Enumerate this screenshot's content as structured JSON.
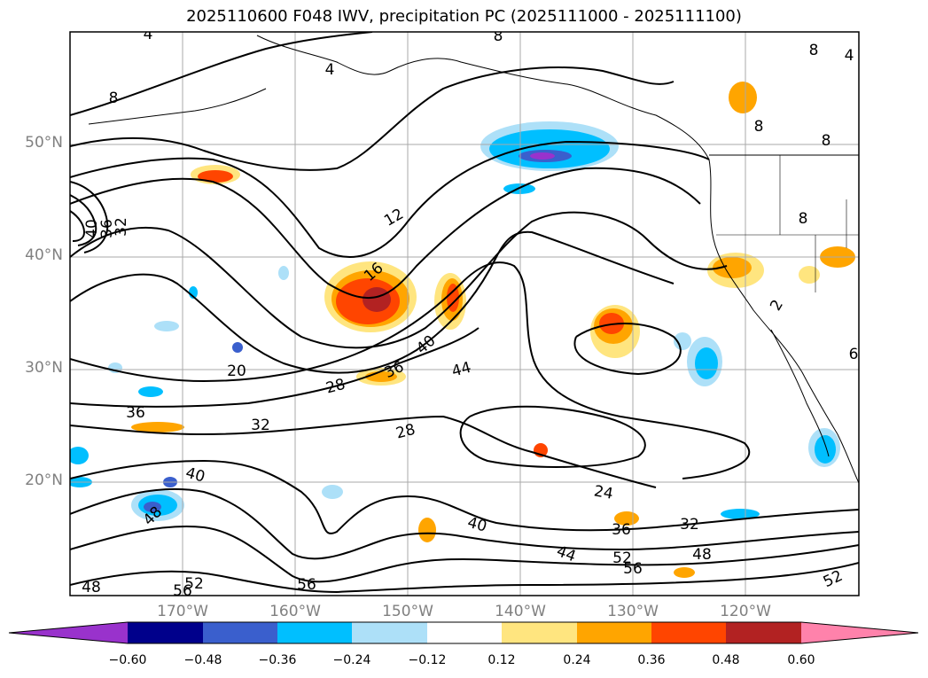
{
  "title": "2025110600 F048 IWV, precipitation PC (2025111000 - 2025111100)",
  "map": {
    "lat_labels": [
      "50°N",
      "40°N",
      "30°N",
      "20°N"
    ],
    "lon_labels": [
      "170°W",
      "160°W",
      "150°W",
      "140°W",
      "130°W",
      "120°W"
    ],
    "contour_labels": [
      "4",
      "4",
      "8",
      "8",
      "8",
      "4",
      "8",
      "8",
      "12",
      "16",
      "40",
      "36",
      "32",
      "20",
      "28",
      "36",
      "40",
      "44",
      "32",
      "28",
      "36",
      "24",
      "32",
      "40",
      "36",
      "44",
      "52",
      "56",
      "48",
      "52",
      "48",
      "52",
      "56",
      "56",
      "48",
      "40",
      "2",
      "8",
      "6"
    ],
    "colors": {
      "neg_high": "#9932CC",
      "neg_060": "#00008B",
      "neg_048": "#3A5FCD",
      "neg_036": "#00BFFF",
      "neg_024": "#ADE0F8",
      "neutral": "#FFFFFF",
      "pos_012": "#FFE57F",
      "pos_024": "#FFA500",
      "pos_036": "#FF4500",
      "pos_048": "#B22222",
      "pos_high": "#FF82AB"
    }
  },
  "colorbar": {
    "labels": [
      "−0.60",
      "−0.48",
      "−0.36",
      "−0.24",
      "−0.12",
      "0.12",
      "0.24",
      "0.36",
      "0.48",
      "0.60"
    ]
  }
}
